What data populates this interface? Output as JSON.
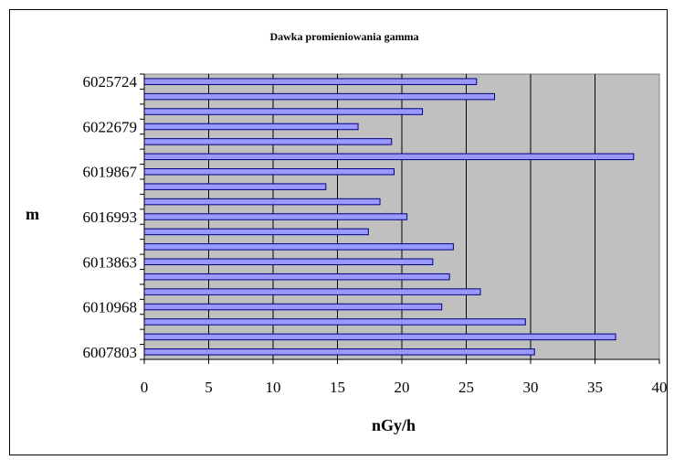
{
  "chart_data": {
    "type": "bar",
    "orientation": "horizontal",
    "title": "Dawka promieniowania gamma",
    "xlabel": "nGy/h",
    "ylabel": "m",
    "xlim": [
      0,
      40
    ],
    "x_ticks": [
      0,
      5,
      10,
      15,
      20,
      25,
      30,
      35,
      40
    ],
    "grid": "vertical",
    "legend": "none",
    "colors": {
      "bar_fill": "#9999ff",
      "bar_stroke": "#000080",
      "plot_background": "#c0c0c0",
      "gridline": "#000000"
    },
    "categories": [
      "6025724",
      "",
      "",
      "6022679",
      "",
      "",
      "6019867",
      "",
      "",
      "6016993",
      "",
      "",
      "6013863",
      "",
      "",
      "6010968",
      "",
      "",
      "6007803"
    ],
    "values": [
      25.8,
      27.2,
      21.6,
      16.6,
      19.2,
      38.0,
      19.4,
      14.1,
      18.3,
      20.4,
      17.4,
      24.0,
      22.4,
      23.7,
      26.1,
      23.1,
      29.6,
      36.6,
      30.3
    ]
  }
}
